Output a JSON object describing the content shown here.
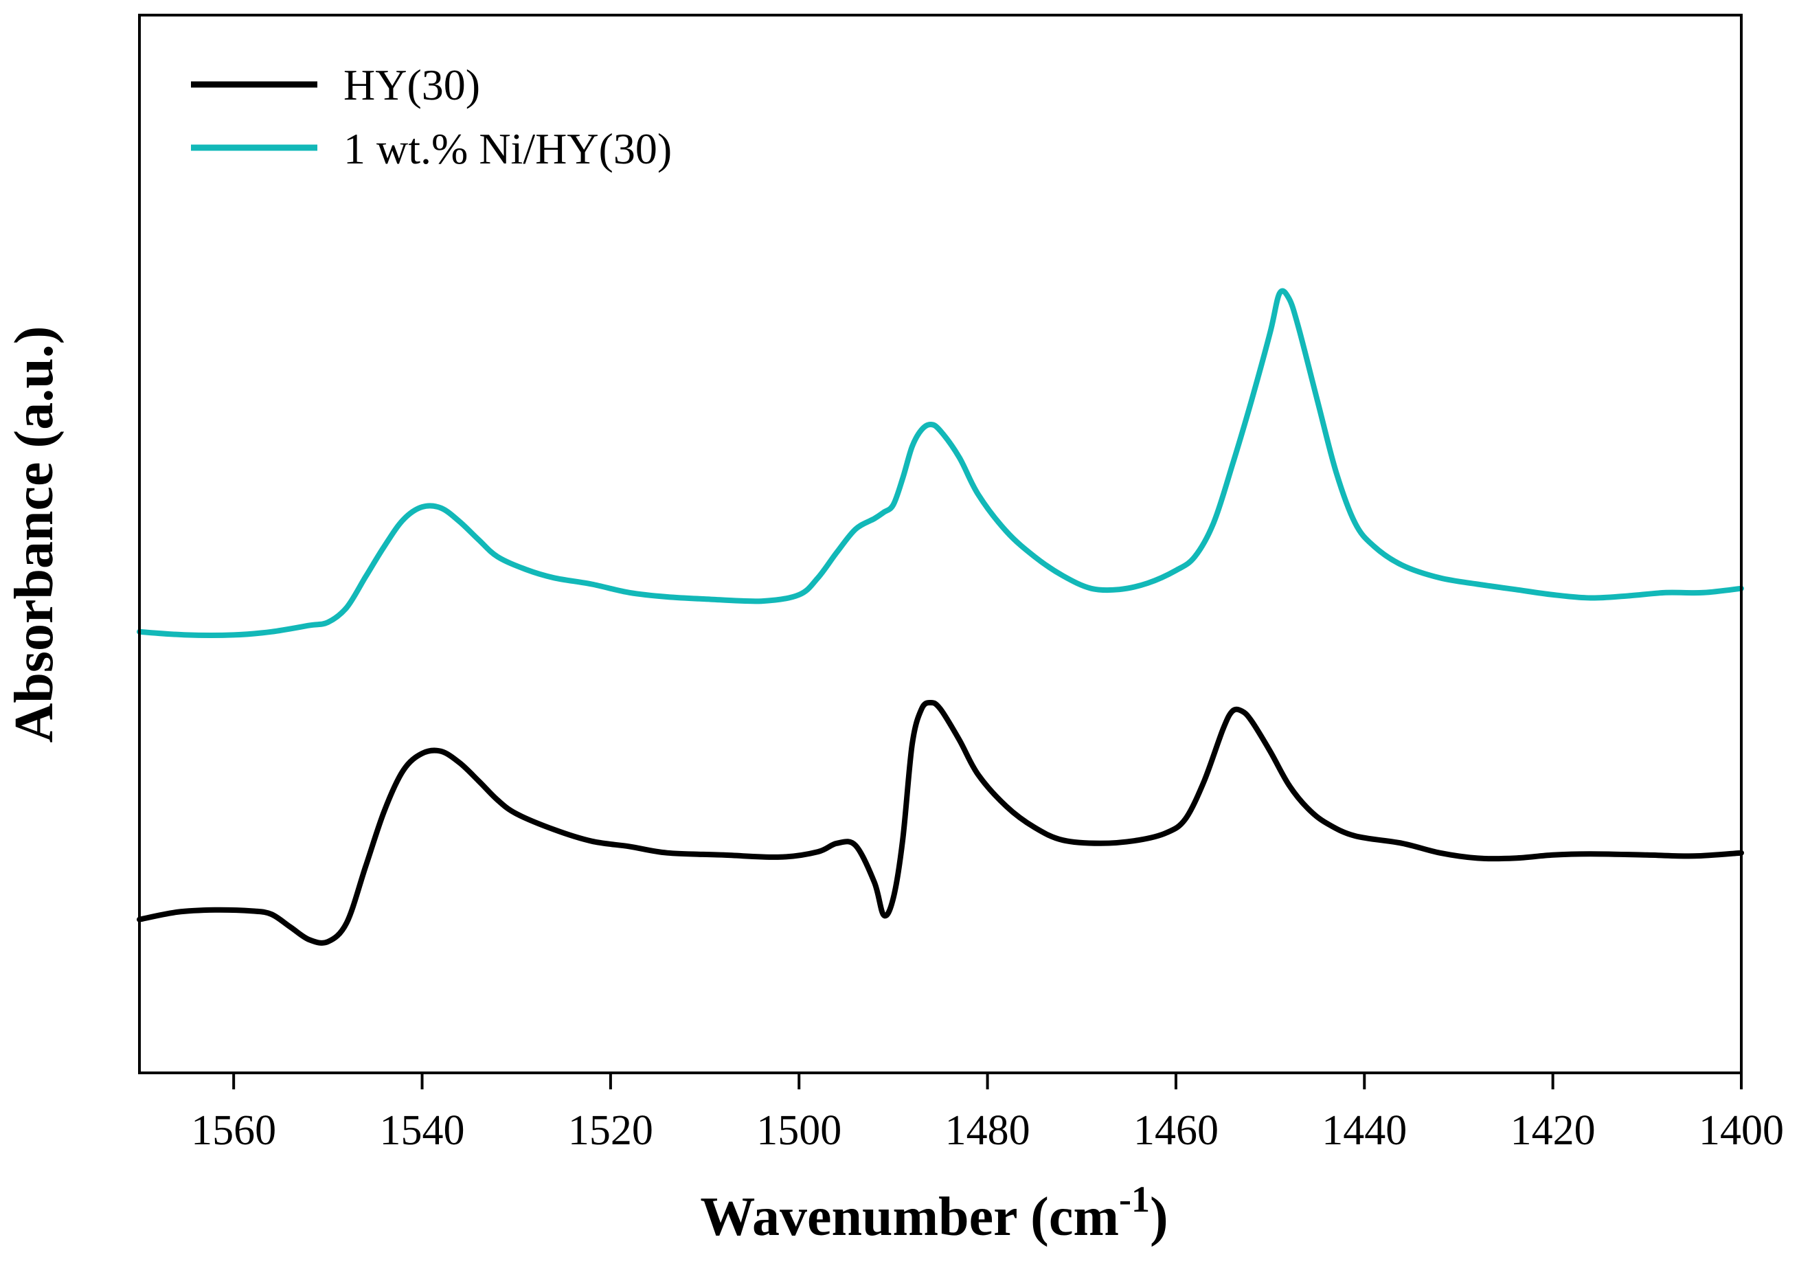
{
  "chart_data": {
    "type": "line",
    "title": "",
    "xlabel": "Wavenumber (cm",
    "xlabel_superscript": "-1",
    "xlabel_suffix": ")",
    "ylabel": "Absorbance (a.u.)",
    "x_reversed": true,
    "xlim": [
      1570,
      1400
    ],
    "ylim": [
      0,
      100
    ],
    "xticks": [
      1560,
      1540,
      1520,
      1500,
      1480,
      1460,
      1440,
      1420,
      1400
    ],
    "xtick_labels": [
      "1560",
      "1540",
      "1520",
      "1500",
      "1480",
      "1460",
      "1440",
      "1420",
      "1400"
    ],
    "yticks_visible": false,
    "grid": false,
    "legend_position": "top-left",
    "series": [
      {
        "name": "HY(30)",
        "color": "#000000",
        "points": [
          [
            1570,
            14.5
          ],
          [
            1566,
            15.2
          ],
          [
            1562,
            15.4
          ],
          [
            1558,
            15.3
          ],
          [
            1556,
            15.0
          ],
          [
            1554,
            13.8
          ],
          [
            1552,
            12.6
          ],
          [
            1550,
            12.4
          ],
          [
            1548,
            14.2
          ],
          [
            1546,
            19.5
          ],
          [
            1544,
            24.8
          ],
          [
            1542,
            28.6
          ],
          [
            1540,
            30.2
          ],
          [
            1538,
            30.4
          ],
          [
            1536,
            29.3
          ],
          [
            1534,
            27.6
          ],
          [
            1532,
            25.8
          ],
          [
            1530,
            24.5
          ],
          [
            1526,
            23.0
          ],
          [
            1522,
            21.9
          ],
          [
            1518,
            21.4
          ],
          [
            1514,
            20.8
          ],
          [
            1508,
            20.6
          ],
          [
            1502,
            20.4
          ],
          [
            1498,
            20.9
          ],
          [
            1496,
            21.7
          ],
          [
            1494,
            21.5
          ],
          [
            1492,
            18.0
          ],
          [
            1491,
            14.9
          ],
          [
            1490,
            16.5
          ],
          [
            1489,
            22.0
          ],
          [
            1488,
            31.0
          ],
          [
            1487,
            34.4
          ],
          [
            1486,
            35.0
          ],
          [
            1485,
            34.4
          ],
          [
            1483,
            31.5
          ],
          [
            1481,
            28.2
          ],
          [
            1478,
            25.2
          ],
          [
            1475,
            23.2
          ],
          [
            1472,
            22.0
          ],
          [
            1468,
            21.7
          ],
          [
            1464,
            22.0
          ],
          [
            1461,
            22.7
          ],
          [
            1459,
            24.0
          ],
          [
            1457,
            27.6
          ],
          [
            1455,
            32.5
          ],
          [
            1454,
            34.2
          ],
          [
            1453,
            34.2
          ],
          [
            1452,
            33.3
          ],
          [
            1450,
            30.4
          ],
          [
            1448,
            27.2
          ],
          [
            1446,
            25.0
          ],
          [
            1444,
            23.6
          ],
          [
            1441,
            22.4
          ],
          [
            1436,
            21.7
          ],
          [
            1432,
            20.8
          ],
          [
            1428,
            20.3
          ],
          [
            1424,
            20.3
          ],
          [
            1420,
            20.6
          ],
          [
            1416,
            20.7
          ],
          [
            1410,
            20.6
          ],
          [
            1405,
            20.5
          ],
          [
            1400,
            20.8
          ]
        ]
      },
      {
        "name": "1 wt.% Ni/HY(30)",
        "color": "#12b8b8",
        "points": [
          [
            1570,
            41.7
          ],
          [
            1565,
            41.4
          ],
          [
            1560,
            41.4
          ],
          [
            1556,
            41.7
          ],
          [
            1552,
            42.3
          ],
          [
            1550,
            42.6
          ],
          [
            1548,
            44.0
          ],
          [
            1546,
            46.9
          ],
          [
            1544,
            49.8
          ],
          [
            1542,
            52.3
          ],
          [
            1540,
            53.5
          ],
          [
            1538,
            53.4
          ],
          [
            1536,
            52.1
          ],
          [
            1534,
            50.4
          ],
          [
            1532,
            48.8
          ],
          [
            1529,
            47.6
          ],
          [
            1526,
            46.8
          ],
          [
            1522,
            46.2
          ],
          [
            1518,
            45.4
          ],
          [
            1514,
            45.0
          ],
          [
            1510,
            44.8
          ],
          [
            1504,
            44.6
          ],
          [
            1500,
            45.2
          ],
          [
            1498,
            46.8
          ],
          [
            1496,
            49.2
          ],
          [
            1494,
            51.4
          ],
          [
            1492,
            52.4
          ],
          [
            1491,
            53.0
          ],
          [
            1490,
            53.7
          ],
          [
            1489,
            56.2
          ],
          [
            1488,
            59.2
          ],
          [
            1487,
            60.8
          ],
          [
            1486,
            61.3
          ],
          [
            1485,
            60.7
          ],
          [
            1483,
            58.2
          ],
          [
            1481,
            54.7
          ],
          [
            1478,
            51.2
          ],
          [
            1475,
            48.8
          ],
          [
            1472,
            47.0
          ],
          [
            1469,
            45.8
          ],
          [
            1466,
            45.7
          ],
          [
            1463,
            46.3
          ],
          [
            1460,
            47.5
          ],
          [
            1458,
            48.8
          ],
          [
            1456,
            52.0
          ],
          [
            1454,
            57.5
          ],
          [
            1452,
            63.5
          ],
          [
            1450,
            70.0
          ],
          [
            1449,
            73.7
          ],
          [
            1448,
            73.2
          ],
          [
            1447,
            70.5
          ],
          [
            1445,
            63.6
          ],
          [
            1443,
            56.8
          ],
          [
            1441,
            52.0
          ],
          [
            1439,
            49.8
          ],
          [
            1436,
            48.0
          ],
          [
            1432,
            46.8
          ],
          [
            1428,
            46.2
          ],
          [
            1424,
            45.7
          ],
          [
            1420,
            45.2
          ],
          [
            1416,
            44.9
          ],
          [
            1412,
            45.1
          ],
          [
            1408,
            45.4
          ],
          [
            1404,
            45.4
          ],
          [
            1400,
            45.8
          ]
        ]
      }
    ]
  }
}
